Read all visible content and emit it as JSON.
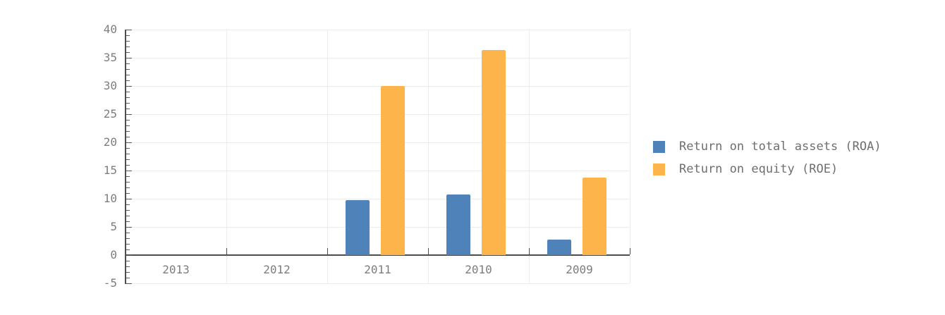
{
  "chart_data": {
    "type": "bar",
    "title": "",
    "xlabel": "",
    "ylabel": "",
    "categories": [
      "2013",
      "2012",
      "2011",
      "2010",
      "2009"
    ],
    "series": [
      {
        "name": "Return on total assets (ROA)",
        "key": "roa",
        "color": "#4E82B8",
        "values": [
          0,
          0,
          9.7,
          10.8,
          2.7
        ]
      },
      {
        "name": "Return on equity (ROE)",
        "key": "roe",
        "color": "#FDB44B",
        "values": [
          0,
          0,
          30,
          36.4,
          13.8
        ]
      }
    ],
    "ylim": [
      -5,
      40
    ],
    "yticks": [
      40,
      35,
      30,
      25,
      20,
      15,
      10,
      5,
      0,
      -5
    ],
    "minor_tick_step": 1,
    "grid": "on",
    "legend_position": "right"
  }
}
